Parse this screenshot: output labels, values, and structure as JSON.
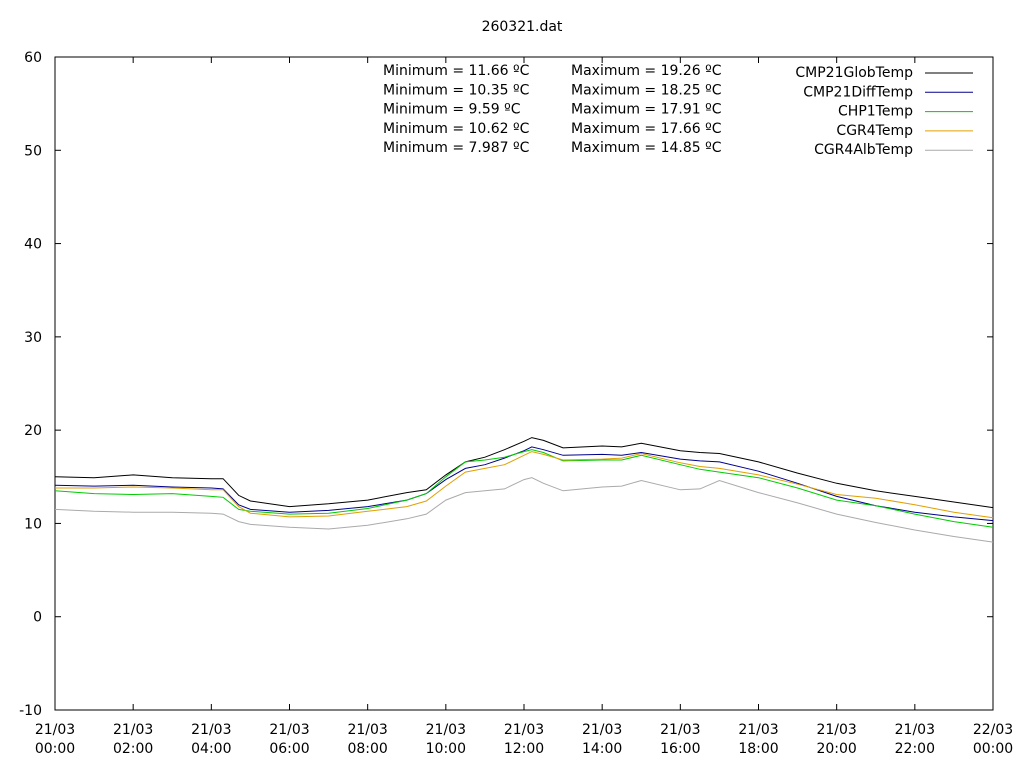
{
  "chart_data": {
    "type": "line",
    "title": "260321.dat",
    "xlabel": "",
    "ylabel": "",
    "ylim": [
      -10,
      60
    ],
    "yticks": [
      -10,
      0,
      10,
      20,
      30,
      40,
      50,
      60
    ],
    "xlim_hours": [
      0,
      24
    ],
    "xticks": [
      {
        "hour": 0,
        "date": "21/03",
        "time": "00:00"
      },
      {
        "hour": 2,
        "date": "21/03",
        "time": "02:00"
      },
      {
        "hour": 4,
        "date": "21/03",
        "time": "04:00"
      },
      {
        "hour": 6,
        "date": "21/03",
        "time": "06:00"
      },
      {
        "hour": 8,
        "date": "21/03",
        "time": "08:00"
      },
      {
        "hour": 10,
        "date": "21/03",
        "time": "10:00"
      },
      {
        "hour": 12,
        "date": "21/03",
        "time": "12:00"
      },
      {
        "hour": 14,
        "date": "21/03",
        "time": "14:00"
      },
      {
        "hour": 16,
        "date": "21/03",
        "time": "16:00"
      },
      {
        "hour": 18,
        "date": "21/03",
        "time": "18:00"
      },
      {
        "hour": 20,
        "date": "21/03",
        "time": "20:00"
      },
      {
        "hour": 22,
        "date": "21/03",
        "time": "22:00"
      },
      {
        "hour": 24,
        "date": "22/03",
        "time": "00:00"
      }
    ],
    "grid": false,
    "legend_position": "top-right",
    "annotations": [
      {
        "min": "Minimum = 11.66 ºC",
        "max": "Maximum = 19.26 ºC"
      },
      {
        "min": "Minimum = 10.35 ºC",
        "max": "Maximum = 18.25 ºC"
      },
      {
        "min": "Minimum = 9.59 ºC",
        "max": "Maximum = 17.91 ºC"
      },
      {
        "min": "Minimum = 10.62 ºC",
        "max": "Maximum = 17.66 ºC"
      },
      {
        "min": "Minimum = 7.987 ºC",
        "max": "Maximum = 14.85 ºC"
      }
    ],
    "series": [
      {
        "name": "CMP21GlobTemp",
        "color": "#000000",
        "x": [
          0,
          1,
          2,
          3,
          4,
          4.3,
          4.7,
          5,
          6,
          7,
          8,
          9,
          9.5,
          10,
          10.5,
          11,
          11.5,
          12,
          12.2,
          12.5,
          13,
          14,
          14.5,
          15,
          16,
          16.5,
          17,
          18,
          19,
          20,
          21,
          22,
          23,
          24
        ],
        "y": [
          15,
          14.9,
          15.2,
          14.9,
          14.8,
          14.8,
          13,
          12.4,
          11.8,
          12.1,
          12.5,
          13.3,
          13.6,
          15.2,
          16.6,
          17.1,
          17.9,
          18.8,
          19.2,
          18.9,
          18.1,
          18.3,
          18.2,
          18.6,
          17.8,
          17.6,
          17.5,
          16.6,
          15.4,
          14.3,
          13.5,
          12.9,
          12.3,
          11.7
        ]
      },
      {
        "name": "CMP21DiffTemp",
        "color": "#00008b",
        "x": [
          0,
          1,
          2,
          3,
          4,
          4.3,
          4.7,
          5,
          6,
          7,
          8,
          9,
          9.5,
          10,
          10.5,
          11,
          11.5,
          12,
          12.2,
          12.5,
          13,
          14,
          14.5,
          15,
          16,
          16.5,
          17,
          18,
          19,
          20,
          21,
          22,
          23,
          24
        ],
        "y": [
          14.1,
          14,
          14.1,
          13.9,
          13.8,
          13.7,
          12,
          11.5,
          11.2,
          11.4,
          11.8,
          12.5,
          13.2,
          14.7,
          15.9,
          16.3,
          17,
          17.8,
          18.2,
          17.9,
          17.3,
          17.4,
          17.3,
          17.6,
          16.9,
          16.7,
          16.6,
          15.6,
          14.3,
          12.9,
          11.9,
          11.2,
          10.7,
          10.3
        ]
      },
      {
        "name": "CHP1Temp",
        "color": "#00cc00",
        "x": [
          0,
          1,
          2,
          3,
          4,
          4.3,
          4.7,
          5,
          6,
          7,
          8,
          9,
          9.5,
          10,
          10.5,
          11,
          11.5,
          12,
          12.2,
          12.5,
          13,
          14,
          14.5,
          15,
          16,
          16.5,
          17,
          18,
          19,
          20,
          21,
          22,
          23,
          24
        ],
        "y": [
          13.5,
          13.2,
          13.1,
          13.2,
          12.9,
          12.8,
          11.5,
          11.3,
          11,
          11.1,
          11.6,
          12.5,
          13.2,
          15,
          16.6,
          16.8,
          17.1,
          17.7,
          17.9,
          17.6,
          16.7,
          16.8,
          16.8,
          17.3,
          16.3,
          15.8,
          15.5,
          14.9,
          13.8,
          12.5,
          11.9,
          11,
          10.2,
          9.6
        ]
      },
      {
        "name": "CGR4Temp",
        "color": "#e0a000",
        "x": [
          0,
          1,
          2,
          3,
          4,
          4.3,
          4.7,
          5,
          6,
          7,
          8,
          9,
          9.5,
          10,
          10.5,
          11,
          11.5,
          12,
          12.2,
          12.5,
          13,
          14,
          14.5,
          15,
          16,
          16.5,
          17,
          18,
          19,
          20,
          21,
          22,
          23,
          24
        ],
        "y": [
          13.8,
          13.8,
          13.9,
          13.8,
          13.6,
          13.6,
          11.8,
          11.1,
          10.7,
          10.8,
          11.3,
          11.8,
          12.4,
          14,
          15.5,
          15.9,
          16.3,
          17.3,
          17.7,
          17.4,
          16.8,
          16.9,
          17,
          17.5,
          16.5,
          16.1,
          15.9,
          15.2,
          14.2,
          13.1,
          12.7,
          12,
          11.2,
          10.6
        ]
      },
      {
        "name": "CGR4AlbTemp",
        "color": "#aaaaaa",
        "x": [
          0,
          1,
          2,
          3,
          4,
          4.3,
          4.7,
          5,
          6,
          7,
          8,
          9,
          9.5,
          10,
          10.5,
          11,
          11.5,
          12,
          12.2,
          12.5,
          13,
          14,
          14.5,
          15,
          16,
          16.5,
          17,
          18,
          19,
          20,
          21,
          22,
          23,
          24
        ],
        "y": [
          11.5,
          11.3,
          11.2,
          11.2,
          11.1,
          11,
          10.2,
          9.9,
          9.6,
          9.4,
          9.8,
          10.5,
          11,
          12.5,
          13.3,
          13.5,
          13.7,
          14.7,
          14.9,
          14.3,
          13.5,
          13.9,
          14,
          14.6,
          13.6,
          13.7,
          14.6,
          13.3,
          12.2,
          11,
          10.1,
          9.3,
          8.6,
          8
        ]
      }
    ]
  }
}
